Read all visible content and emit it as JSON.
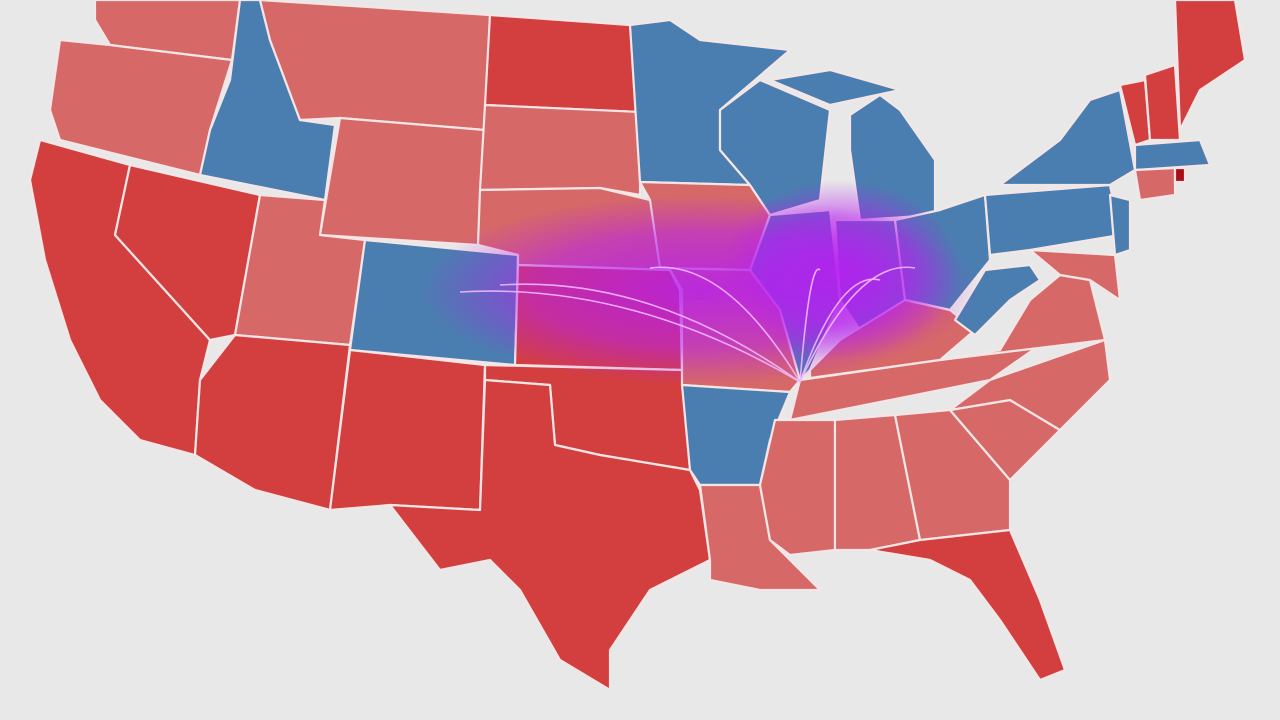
{
  "map": {
    "fills": {
      "red": "#d33f3f",
      "light_red": "#d66868",
      "blue": "#4a7eb0",
      "dark_red": "#a80f12",
      "highlight": "#b61ef0"
    }
  }
}
